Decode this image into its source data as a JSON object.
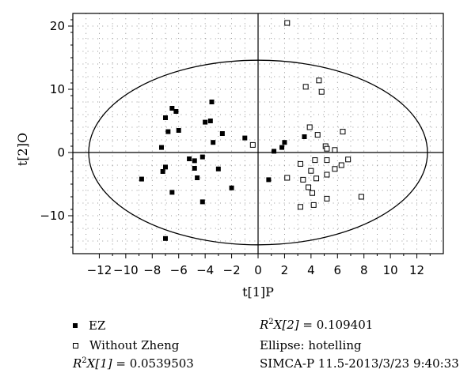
{
  "chart_data": {
    "type": "scatter",
    "xlabel": "t[1]P",
    "ylabel": "t[2]O",
    "xlim": [
      -14,
      14
    ],
    "ylim": [
      -16,
      22
    ],
    "xticks": [
      -12,
      -10,
      -8,
      -6,
      -4,
      -2,
      0,
      2,
      4,
      6,
      8,
      10,
      12
    ],
    "yticks": [
      -10,
      0,
      10,
      20
    ],
    "grid": "dotted",
    "ellipse": {
      "cx": 0,
      "cy": 0,
      "rx": 12.8,
      "ry": 14.6
    },
    "series": [
      {
        "name": "EZ",
        "marker": "filled-square",
        "points": [
          [
            -3.5,
            8
          ],
          [
            -6.5,
            7
          ],
          [
            -6.2,
            6.5
          ],
          [
            -7.0,
            5.5
          ],
          [
            -4.0,
            4.8
          ],
          [
            -3.6,
            5.0
          ],
          [
            -6.0,
            3.5
          ],
          [
            -6.8,
            3.3
          ],
          [
            -2.7,
            3.0
          ],
          [
            -1.0,
            2.3
          ],
          [
            -3.4,
            1.6
          ],
          [
            -7.3,
            0.8
          ],
          [
            -3.0,
            -2.6
          ],
          [
            -4.2,
            -0.7
          ],
          [
            -5.2,
            -1.0
          ],
          [
            -4.8,
            -1.3
          ],
          [
            -4.8,
            -2.5
          ],
          [
            -7.0,
            -2.3
          ],
          [
            -7.2,
            -3.0
          ],
          [
            -8.8,
            -4.2
          ],
          [
            -4.6,
            -4.0
          ],
          [
            -2.0,
            -5.6
          ],
          [
            -6.5,
            -6.3
          ],
          [
            -4.2,
            -7.8
          ],
          [
            -7.0,
            -13.6
          ],
          [
            0.8,
            -4.3
          ],
          [
            1.2,
            0.2
          ],
          [
            1.8,
            0.8
          ],
          [
            2.0,
            1.6
          ],
          [
            3.5,
            2.5
          ]
        ]
      },
      {
        "name": "Without Zheng",
        "marker": "open-square",
        "points": [
          [
            2.2,
            20.5
          ],
          [
            4.6,
            11.4
          ],
          [
            3.6,
            10.4
          ],
          [
            4.8,
            9.6
          ],
          [
            3.9,
            4.0
          ],
          [
            6.4,
            3.3
          ],
          [
            4.5,
            2.8
          ],
          [
            5.1,
            1.0
          ],
          [
            5.2,
            0.6
          ],
          [
            5.8,
            0.4
          ],
          [
            3.2,
            -1.8
          ],
          [
            4.3,
            -1.2
          ],
          [
            5.2,
            -1.2
          ],
          [
            6.8,
            -1.1
          ],
          [
            6.3,
            -2.0
          ],
          [
            5.8,
            -2.6
          ],
          [
            4.0,
            -2.9
          ],
          [
            5.2,
            -3.5
          ],
          [
            2.2,
            -4.0
          ],
          [
            3.4,
            -4.3
          ],
          [
            4.4,
            -4.1
          ],
          [
            3.8,
            -5.5
          ],
          [
            4.1,
            -6.4
          ],
          [
            5.2,
            -7.3
          ],
          [
            7.8,
            -7.0
          ],
          [
            3.2,
            -8.6
          ],
          [
            4.2,
            -8.3
          ],
          [
            -0.4,
            1.2
          ]
        ]
      }
    ]
  },
  "footer": {
    "legend": [
      {
        "label": "EZ",
        "marker": "filled-square"
      },
      {
        "label": "Without Zheng",
        "marker": "open-square"
      }
    ],
    "r2x1": {
      "prefix": "R",
      "sup": "2",
      "mid": "X[1] = ",
      "value": "0.0539503"
    },
    "r2x2": {
      "prefix": "R",
      "sup": "2",
      "mid": "X[2] = ",
      "value": "0.109401"
    },
    "ellipse_text": "Ellipse: hotelling",
    "software_text": "SIMCA-P 11.5-2013/3/23 9:40:33"
  }
}
